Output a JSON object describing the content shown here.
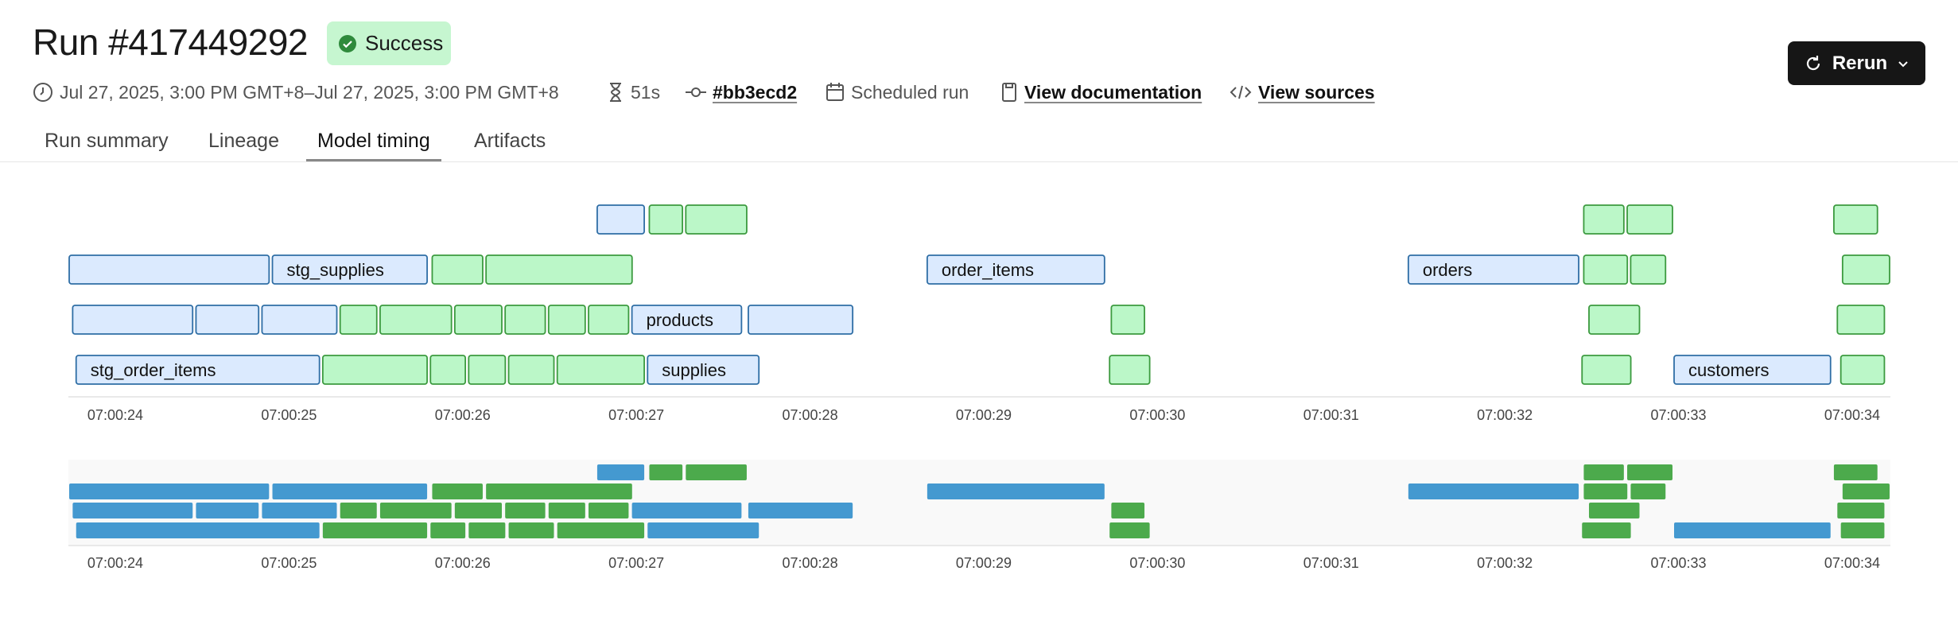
{
  "header": {
    "title": "Run #417449292",
    "status": "Success",
    "meta": {
      "time_range": "Jul 27, 2025, 3:00 PM GMT+8–Jul 27, 2025, 3:00 PM GMT+8",
      "duration": "51s",
      "commit": "#bb3ecd2",
      "trigger": "Scheduled run",
      "docs_link": "View documentation",
      "sources_link": "View sources"
    },
    "button": "Rerun"
  },
  "tabs": {
    "items": [
      "Run summary",
      "Lineage",
      "Model timing",
      "Artifacts"
    ],
    "active": 2
  },
  "chart_data": {
    "type": "timeline",
    "xlim": [
      23.73,
      34.22
    ],
    "xticks": [
      {
        "value": 24,
        "label": "07:00:24"
      },
      {
        "value": 25,
        "label": "07:00:25"
      },
      {
        "value": 26,
        "label": "07:00:26"
      },
      {
        "value": 27,
        "label": "07:00:27"
      },
      {
        "value": 28,
        "label": "07:00:28"
      },
      {
        "value": 29,
        "label": "07:00:29"
      },
      {
        "value": 30,
        "label": "07:00:30"
      },
      {
        "value": 31,
        "label": "07:00:31"
      },
      {
        "value": 32,
        "label": "07:00:32"
      },
      {
        "value": 33,
        "label": "07:00:33"
      },
      {
        "value": 34,
        "label": "07:00:34"
      }
    ],
    "colors": {
      "model": {
        "fill": "#dbeafe",
        "stroke": "#2f6ea5",
        "mini": "#4499d0"
      },
      "test": {
        "fill": "#bbf7c8",
        "stroke": "#3c9a3f",
        "mini": "#4caa4c"
      }
    },
    "rows": [
      {
        "bars": [
          {
            "start": 26.77,
            "end": 27.05,
            "kind": "model"
          },
          {
            "start": 27.07,
            "end": 27.27,
            "kind": "test"
          },
          {
            "start": 27.28,
            "end": 27.64,
            "kind": "test"
          },
          {
            "start": 32.45,
            "end": 32.69,
            "kind": "test"
          },
          {
            "start": 32.7,
            "end": 32.97,
            "kind": "test"
          },
          {
            "start": 33.89,
            "end": 34.15,
            "kind": "test"
          }
        ]
      },
      {
        "bars": [
          {
            "start": 23.73,
            "end": 24.89,
            "kind": "model"
          },
          {
            "start": 24.9,
            "end": 25.8,
            "kind": "model",
            "label": "stg_supplies"
          },
          {
            "start": 25.82,
            "end": 26.12,
            "kind": "test"
          },
          {
            "start": 26.13,
            "end": 26.98,
            "kind": "test"
          },
          {
            "start": 28.67,
            "end": 29.7,
            "kind": "model",
            "label": "order_items"
          },
          {
            "start": 31.44,
            "end": 32.43,
            "kind": "model",
            "label": "orders"
          },
          {
            "start": 32.45,
            "end": 32.71,
            "kind": "test"
          },
          {
            "start": 32.72,
            "end": 32.93,
            "kind": "test"
          },
          {
            "start": 33.94,
            "end": 34.22,
            "kind": "test"
          }
        ]
      },
      {
        "bars": [
          {
            "start": 23.75,
            "end": 24.45,
            "kind": "model"
          },
          {
            "start": 24.46,
            "end": 24.83,
            "kind": "model"
          },
          {
            "start": 24.84,
            "end": 25.28,
            "kind": "model"
          },
          {
            "start": 25.29,
            "end": 25.51,
            "kind": "test"
          },
          {
            "start": 25.52,
            "end": 25.94,
            "kind": "test"
          },
          {
            "start": 25.95,
            "end": 26.23,
            "kind": "test"
          },
          {
            "start": 26.24,
            "end": 26.48,
            "kind": "test"
          },
          {
            "start": 26.49,
            "end": 26.71,
            "kind": "test"
          },
          {
            "start": 26.72,
            "end": 26.96,
            "kind": "test"
          },
          {
            "start": 26.97,
            "end": 27.61,
            "kind": "model",
            "label": "products"
          },
          {
            "start": 27.64,
            "end": 28.25,
            "kind": "model"
          },
          {
            "start": 29.73,
            "end": 29.93,
            "kind": "test"
          },
          {
            "start": 32.48,
            "end": 32.78,
            "kind": "test"
          },
          {
            "start": 33.91,
            "end": 34.19,
            "kind": "test"
          }
        ]
      },
      {
        "bars": [
          {
            "start": 23.77,
            "end": 25.18,
            "kind": "model",
            "label": "stg_order_items"
          },
          {
            "start": 25.19,
            "end": 25.8,
            "kind": "test"
          },
          {
            "start": 25.81,
            "end": 26.02,
            "kind": "test"
          },
          {
            "start": 26.03,
            "end": 26.25,
            "kind": "test"
          },
          {
            "start": 26.26,
            "end": 26.53,
            "kind": "test"
          },
          {
            "start": 26.54,
            "end": 27.05,
            "kind": "test"
          },
          {
            "start": 27.06,
            "end": 27.71,
            "kind": "model",
            "label": "supplies"
          },
          {
            "start": 29.72,
            "end": 29.96,
            "kind": "test"
          },
          {
            "start": 32.44,
            "end": 32.73,
            "kind": "test"
          },
          {
            "start": 32.97,
            "end": 33.88,
            "kind": "model",
            "label": "customers"
          },
          {
            "start": 33.93,
            "end": 34.19,
            "kind": "test"
          }
        ]
      }
    ]
  }
}
